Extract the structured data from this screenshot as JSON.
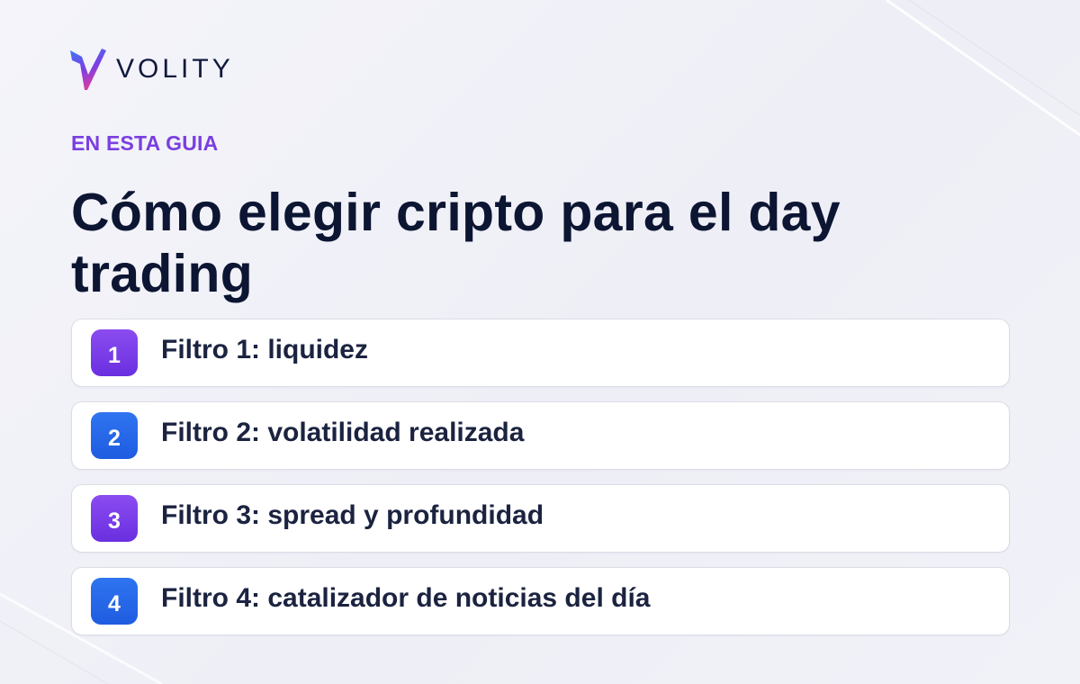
{
  "brand": {
    "name": "VOLITY",
    "logo_icon": "volity-v-logo-icon",
    "colors": {
      "purple": "#7a3fe0",
      "blue": "#2f74f0",
      "navy": "#0c1633"
    }
  },
  "eyebrow": "EN ESTA GUIA",
  "title": "Cómo elegir cripto para el day trading",
  "items": [
    {
      "number": "1",
      "label": "Filtro 1: liquidez",
      "color": "purple"
    },
    {
      "number": "2",
      "label": "Filtro 2: volatilidad realizada",
      "color": "blue"
    },
    {
      "number": "3",
      "label": "Filtro 3: spread y profundidad",
      "color": "purple"
    },
    {
      "number": "4",
      "label": "Filtro 4: catalizador de noticias del día",
      "color": "blue"
    }
  ]
}
